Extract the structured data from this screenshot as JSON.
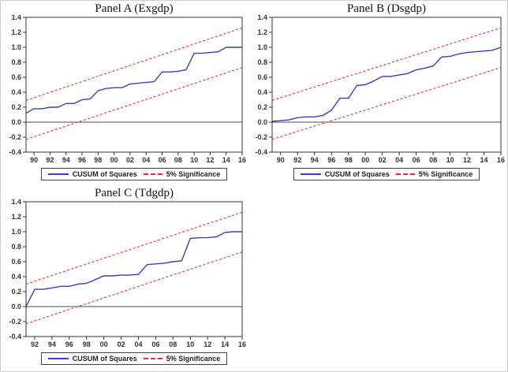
{
  "colors": {
    "cusum_line": "#3c3ccc",
    "significance_line": "#ee2c2c",
    "axis": "#333333",
    "zero_line": "#4d4d4d",
    "tick_label": "#333333"
  },
  "legend": {
    "cusum_label": "CUSUM of Squares",
    "significance_label": "5% Significance"
  },
  "chart_data": [
    {
      "type": "line",
      "title": "Panel A (Exgdp)",
      "ylim": [
        -0.4,
        1.4
      ],
      "ytick_step": 0.2,
      "xrange": [
        1989,
        2016
      ],
      "xtick_labels": [
        "90",
        "92",
        "94",
        "96",
        "98",
        "00",
        "02",
        "04",
        "06",
        "08",
        "10",
        "12",
        "14",
        "16"
      ],
      "grid": false,
      "legend_position": "bottom",
      "zero_line": 0.0,
      "series": [
        {
          "name": "CUSUM of Squares",
          "style": "solid",
          "color": "cusum_line",
          "x": [
            1989,
            1990,
            1991,
            1992,
            1993,
            1994,
            1995,
            1996,
            1997,
            1998,
            1999,
            2000,
            2001,
            2002,
            2003,
            2004,
            2005,
            2006,
            2007,
            2008,
            2009,
            2010,
            2011,
            2012,
            2013,
            2014,
            2015,
            2016
          ],
          "values": [
            0.12,
            0.18,
            0.18,
            0.2,
            0.2,
            0.25,
            0.25,
            0.3,
            0.31,
            0.42,
            0.45,
            0.46,
            0.46,
            0.51,
            0.52,
            0.53,
            0.54,
            0.67,
            0.67,
            0.68,
            0.7,
            0.92,
            0.92,
            0.93,
            0.94,
            1.0,
            1.0,
            1.0
          ]
        },
        {
          "name": "5% Significance (upper bound)",
          "style": "dashed",
          "color": "significance_line",
          "x": [
            1989,
            2016
          ],
          "values": [
            0.29,
            1.26
          ]
        },
        {
          "name": "5% Significance (lower bound)",
          "style": "dashed",
          "color": "significance_line",
          "x": [
            1989,
            2016
          ],
          "values": [
            -0.23,
            0.73
          ]
        }
      ]
    },
    {
      "type": "line",
      "title": "Panel B (Dsgdp)",
      "ylim": [
        -0.4,
        1.4
      ],
      "ytick_step": 0.2,
      "xrange": [
        1989,
        2016
      ],
      "xtick_labels": [
        "90",
        "92",
        "94",
        "96",
        "98",
        "00",
        "02",
        "04",
        "06",
        "08",
        "10",
        "12",
        "14",
        "16"
      ],
      "grid": false,
      "legend_position": "bottom",
      "zero_line": 0.0,
      "series": [
        {
          "name": "CUSUM of Squares",
          "style": "solid",
          "color": "cusum_line",
          "x": [
            1989,
            1990,
            1991,
            1992,
            1993,
            1994,
            1995,
            1996,
            1997,
            1998,
            1999,
            2000,
            2001,
            2002,
            2003,
            2004,
            2005,
            2006,
            2007,
            2008,
            2009,
            2010,
            2011,
            2012,
            2013,
            2014,
            2015,
            2016
          ],
          "values": [
            0.01,
            0.02,
            0.03,
            0.06,
            0.07,
            0.07,
            0.09,
            0.16,
            0.32,
            0.32,
            0.49,
            0.5,
            0.55,
            0.61,
            0.61,
            0.63,
            0.65,
            0.7,
            0.72,
            0.75,
            0.87,
            0.88,
            0.91,
            0.93,
            0.94,
            0.95,
            0.96,
            1.0
          ]
        },
        {
          "name": "5% Significance (upper bound)",
          "style": "dashed",
          "color": "significance_line",
          "x": [
            1989,
            2016
          ],
          "values": [
            0.29,
            1.26
          ]
        },
        {
          "name": "5% Significance (lower bound)",
          "style": "dashed",
          "color": "significance_line",
          "x": [
            1989,
            2016
          ],
          "values": [
            -0.23,
            0.73
          ]
        }
      ]
    },
    {
      "type": "line",
      "title": "Panel C (Tdgdp)",
      "ylim": [
        -0.4,
        1.4
      ],
      "ytick_step": 0.2,
      "xrange": [
        1991,
        2016
      ],
      "xtick_labels": [
        "92",
        "94",
        "96",
        "98",
        "00",
        "02",
        "04",
        "06",
        "08",
        "10",
        "12",
        "14",
        "16"
      ],
      "grid": false,
      "legend_position": "bottom",
      "zero_line": 0.0,
      "series": [
        {
          "name": "CUSUM of Squares",
          "style": "solid",
          "color": "cusum_line",
          "x": [
            1991,
            1992,
            1993,
            1994,
            1995,
            1996,
            1997,
            1998,
            1999,
            2000,
            2001,
            2002,
            2003,
            2004,
            2005,
            2006,
            2007,
            2008,
            2009,
            2010,
            2011,
            2012,
            2013,
            2014,
            2015,
            2016
          ],
          "values": [
            0.0,
            0.23,
            0.23,
            0.25,
            0.27,
            0.27,
            0.3,
            0.31,
            0.36,
            0.41,
            0.41,
            0.42,
            0.42,
            0.43,
            0.56,
            0.57,
            0.58,
            0.6,
            0.61,
            0.91,
            0.92,
            0.92,
            0.93,
            0.99,
            1.0,
            1.0
          ]
        },
        {
          "name": "5% Significance (upper bound)",
          "style": "dashed",
          "color": "significance_line",
          "x": [
            1991,
            2016
          ],
          "values": [
            0.3,
            1.26
          ]
        },
        {
          "name": "5% Significance (lower bound)",
          "style": "dashed",
          "color": "significance_line",
          "x": [
            1991,
            2016
          ],
          "values": [
            -0.23,
            0.73
          ]
        }
      ]
    }
  ]
}
